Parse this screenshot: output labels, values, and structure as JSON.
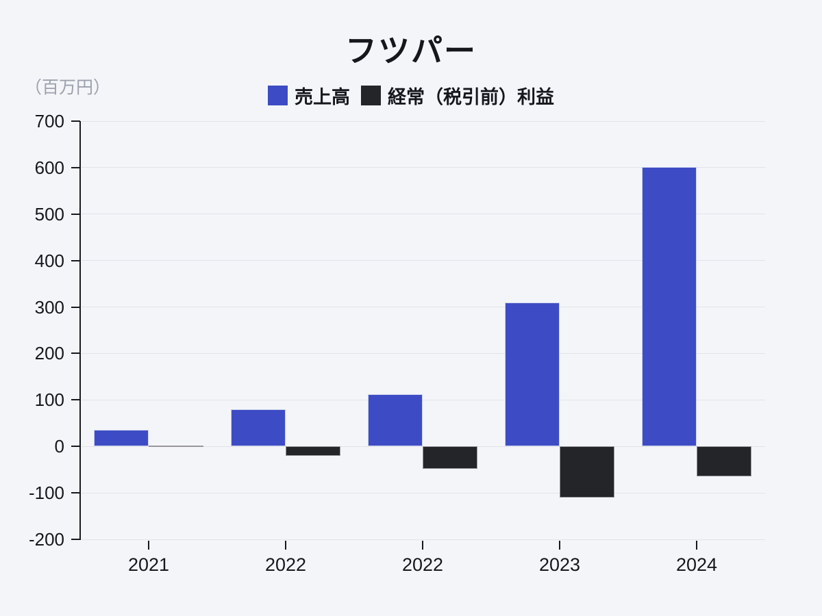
{
  "page": {
    "background": "#f4f5f9"
  },
  "header": {
    "title": "フツパー",
    "unit_label": "（百万円）"
  },
  "chart_data": {
    "type": "bar",
    "title": "フツパー",
    "unit": "百万円",
    "categories": [
      "2021",
      "2022",
      "2022",
      "2023",
      "2024"
    ],
    "series": [
      {
        "name": "売上高",
        "color": "#3d4cc4",
        "values": [
          35,
          80,
          112,
          310,
          602
        ]
      },
      {
        "name": "経常（税引前）利益",
        "color": "#242529",
        "values": [
          1,
          -20,
          -48,
          -110,
          -65
        ]
      }
    ],
    "ylim": [
      -200,
      700
    ],
    "ytick_step": 100,
    "grid": true,
    "legend_position": "top",
    "colors": {
      "background": "#f4f5f9",
      "gridline": "#e2e3e9",
      "axis": "#17191e",
      "text": "#15171c",
      "unit_text": "#9ba1ac"
    }
  }
}
